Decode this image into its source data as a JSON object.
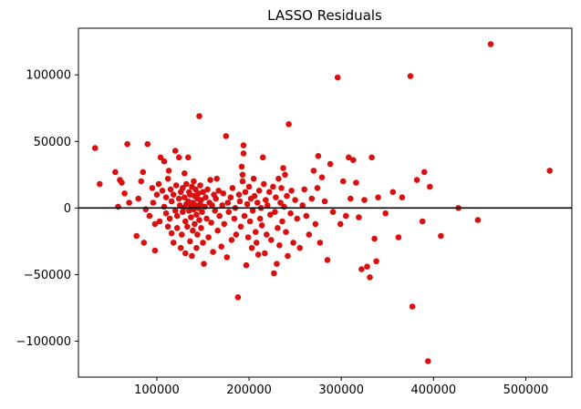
{
  "chart_data": {
    "type": "scatter",
    "title": "LASSO Residuals",
    "xlabel": "",
    "ylabel": "",
    "xlim": [
      15000,
      550000
    ],
    "ylim": [
      -127000,
      135000
    ],
    "x_ticks": [
      100000,
      200000,
      300000,
      400000,
      500000
    ],
    "x_tick_labels": [
      "100000",
      "200000",
      "300000",
      "400000",
      "500000"
    ],
    "y_ticks": [
      -100000,
      -50000,
      0,
      50000,
      100000
    ],
    "y_tick_labels": [
      "−100000",
      "−50000",
      "0",
      "50000",
      "100000"
    ],
    "grid": false,
    "reference_line": {
      "y": 0,
      "color": "#000000"
    },
    "point_color": "#d91010",
    "points": [
      [
        33000,
        45000
      ],
      [
        38000,
        18000
      ],
      [
        55000,
        27000
      ],
      [
        60000,
        21000
      ],
      [
        58000,
        1000
      ],
      [
        62000,
        19000
      ],
      [
        68000,
        48000
      ],
      [
        65000,
        11000
      ],
      [
        70000,
        4000
      ],
      [
        80000,
        7000
      ],
      [
        85000,
        27000
      ],
      [
        83000,
        20000
      ],
      [
        90000,
        48000
      ],
      [
        78000,
        -21000
      ],
      [
        86000,
        -26000
      ],
      [
        88000,
        -1000
      ],
      [
        92000,
        -6000
      ],
      [
        95000,
        15000
      ],
      [
        96000,
        4000
      ],
      [
        98000,
        -12000
      ],
      [
        98000,
        -32000
      ],
      [
        100000,
        10000
      ],
      [
        102000,
        18000
      ],
      [
        103000,
        -10000
      ],
      [
        104000,
        38000
      ],
      [
        106000,
        13000
      ],
      [
        108000,
        1000
      ],
      [
        108000,
        35000
      ],
      [
        110000,
        -4000
      ],
      [
        110000,
        8000
      ],
      [
        112000,
        -14000
      ],
      [
        112000,
        22000
      ],
      [
        113000,
        28000
      ],
      [
        114000,
        -8000
      ],
      [
        115000,
        14000
      ],
      [
        116000,
        5000
      ],
      [
        116000,
        -19000
      ],
      [
        118000,
        -26000
      ],
      [
        118000,
        10000
      ],
      [
        120000,
        43000
      ],
      [
        120000,
        -2000
      ],
      [
        121000,
        17000
      ],
      [
        122000,
        -6000
      ],
      [
        122000,
        -15000
      ],
      [
        124000,
        38000
      ],
      [
        124000,
        7000
      ],
      [
        125000,
        2000
      ],
      [
        126000,
        -30000
      ],
      [
        126000,
        12000
      ],
      [
        127000,
        -20000
      ],
      [
        128000,
        15000
      ],
      [
        128000,
        -3000
      ],
      [
        129000,
        0
      ],
      [
        130000,
        26000
      ],
      [
        130000,
        8000
      ],
      [
        131000,
        -10000
      ],
      [
        131000,
        -34000
      ],
      [
        132000,
        3000
      ],
      [
        132000,
        18000
      ],
      [
        133000,
        -14000
      ],
      [
        134000,
        38000
      ],
      [
        134000,
        5000
      ],
      [
        135000,
        -2000
      ],
      [
        135000,
        12000
      ],
      [
        136000,
        -25000
      ],
      [
        136000,
        10000
      ],
      [
        137000,
        1000
      ],
      [
        137000,
        -7000
      ],
      [
        138000,
        16000
      ],
      [
        138000,
        -36000
      ],
      [
        139000,
        4000
      ],
      [
        139000,
        -17000
      ],
      [
        140000,
        20000
      ],
      [
        140000,
        -1000
      ],
      [
        141000,
        9000
      ],
      [
        141000,
        -12000
      ],
      [
        142000,
        2000
      ],
      [
        142000,
        14000
      ],
      [
        143000,
        -5000
      ],
      [
        143000,
        -30000
      ],
      [
        144000,
        7000
      ],
      [
        144000,
        -20000
      ],
      [
        145000,
        11000
      ],
      [
        145000,
        0
      ],
      [
        146000,
        69000
      ],
      [
        146000,
        -9000
      ],
      [
        147000,
        3000
      ],
      [
        147000,
        17000
      ],
      [
        148000,
        -15000
      ],
      [
        148000,
        6000
      ],
      [
        149000,
        -3000
      ],
      [
        150000,
        12000
      ],
      [
        150000,
        -26000
      ],
      [
        151000,
        -42000
      ],
      [
        152000,
        1000
      ],
      [
        153000,
        8000
      ],
      [
        154000,
        -8000
      ],
      [
        155000,
        14000
      ],
      [
        156000,
        -22000
      ],
      [
        157000,
        4000
      ],
      [
        158000,
        21000
      ],
      [
        159000,
        -11000
      ],
      [
        160000,
        2000
      ],
      [
        161000,
        -33000
      ],
      [
        162000,
        10000
      ],
      [
        163000,
        -2000
      ],
      [
        164000,
        7000
      ],
      [
        165000,
        22000
      ],
      [
        166000,
        -17000
      ],
      [
        167000,
        13000
      ],
      [
        168000,
        -6000
      ],
      [
        170000,
        -29000
      ],
      [
        171000,
        2000
      ],
      [
        172000,
        11000
      ],
      [
        173000,
        -12000
      ],
      [
        175000,
        54000
      ],
      [
        176000,
        -37000
      ],
      [
        177000,
        4000
      ],
      [
        178000,
        -3000
      ],
      [
        180000,
        8000
      ],
      [
        181000,
        -24000
      ],
      [
        182000,
        15000
      ],
      [
        184000,
        -8000
      ],
      [
        185000,
        0
      ],
      [
        186000,
        -20000
      ],
      [
        188000,
        -67000
      ],
      [
        189000,
        10000
      ],
      [
        190000,
        5000
      ],
      [
        191000,
        -14000
      ],
      [
        192000,
        31000
      ],
      [
        193000,
        25000
      ],
      [
        193000,
        20000
      ],
      [
        194000,
        47000
      ],
      [
        194000,
        41000
      ],
      [
        195000,
        -6000
      ],
      [
        196000,
        12000
      ],
      [
        197000,
        -43000
      ],
      [
        198000,
        3000
      ],
      [
        199000,
        -22000
      ],
      [
        200000,
        16000
      ],
      [
        201000,
        -10000
      ],
      [
        202000,
        7000
      ],
      [
        203000,
        -30000
      ],
      [
        204000,
        -2000
      ],
      [
        205000,
        22000
      ],
      [
        206000,
        9000
      ],
      [
        207000,
        -18000
      ],
      [
        208000,
        -26000
      ],
      [
        209000,
        4000
      ],
      [
        210000,
        -35000
      ],
      [
        211000,
        13000
      ],
      [
        212000,
        -8000
      ],
      [
        213000,
        0
      ],
      [
        214000,
        -13000
      ],
      [
        215000,
        38000
      ],
      [
        216000,
        18000
      ],
      [
        217000,
        -34000
      ],
      [
        218000,
        6000
      ],
      [
        219000,
        -20000
      ],
      [
        220000,
        2000
      ],
      [
        222000,
        12000
      ],
      [
        223000,
        -5000
      ],
      [
        224000,
        -24000
      ],
      [
        226000,
        16000
      ],
      [
        227000,
        -49000
      ],
      [
        228000,
        -3000
      ],
      [
        229000,
        8000
      ],
      [
        230000,
        -42000
      ],
      [
        231000,
        -15000
      ],
      [
        232000,
        22000
      ],
      [
        233000,
        -28000
      ],
      [
        234000,
        4000
      ],
      [
        235000,
        15000
      ],
      [
        236000,
        -10000
      ],
      [
        237000,
        30000
      ],
      [
        238000,
        1000
      ],
      [
        239000,
        25000
      ],
      [
        240000,
        -18000
      ],
      [
        241000,
        9000
      ],
      [
        242000,
        -36000
      ],
      [
        243000,
        63000
      ],
      [
        245000,
        -4000
      ],
      [
        246000,
        13000
      ],
      [
        248000,
        -26000
      ],
      [
        250000,
        6000
      ],
      [
        252000,
        -8000
      ],
      [
        255000,
        -30000
      ],
      [
        258000,
        2000
      ],
      [
        260000,
        14000
      ],
      [
        262000,
        -6000
      ],
      [
        265000,
        -20000
      ],
      [
        268000,
        7000
      ],
      [
        270000,
        28000
      ],
      [
        272000,
        -12000
      ],
      [
        274000,
        15000
      ],
      [
        275000,
        39000
      ],
      [
        277000,
        -26000
      ],
      [
        279000,
        23000
      ],
      [
        282000,
        5000
      ],
      [
        285000,
        -39000
      ],
      [
        288000,
        33000
      ],
      [
        291000,
        -3000
      ],
      [
        296000,
        98000
      ],
      [
        299000,
        -12000
      ],
      [
        302000,
        20000
      ],
      [
        305000,
        -6000
      ],
      [
        308000,
        38000
      ],
      [
        310000,
        7000
      ],
      [
        313000,
        36000
      ],
      [
        316000,
        19000
      ],
      [
        319000,
        -7000
      ],
      [
        322000,
        -46000
      ],
      [
        325000,
        6000
      ],
      [
        328000,
        -44000
      ],
      [
        331000,
        -52000
      ],
      [
        333000,
        38000
      ],
      [
        336000,
        -23000
      ],
      [
        338000,
        -40000
      ],
      [
        340000,
        8000
      ],
      [
        348000,
        -4000
      ],
      [
        356000,
        12000
      ],
      [
        362000,
        -22000
      ],
      [
        366000,
        8000
      ],
      [
        375000,
        99000
      ],
      [
        377000,
        -74000
      ],
      [
        382000,
        21000
      ],
      [
        388000,
        -10000
      ],
      [
        390000,
        27000
      ],
      [
        394000,
        -115000
      ],
      [
        396000,
        16000
      ],
      [
        408000,
        -21000
      ],
      [
        427000,
        0
      ],
      [
        448000,
        -9000
      ],
      [
        462000,
        123000
      ],
      [
        526000,
        28000
      ]
    ]
  }
}
